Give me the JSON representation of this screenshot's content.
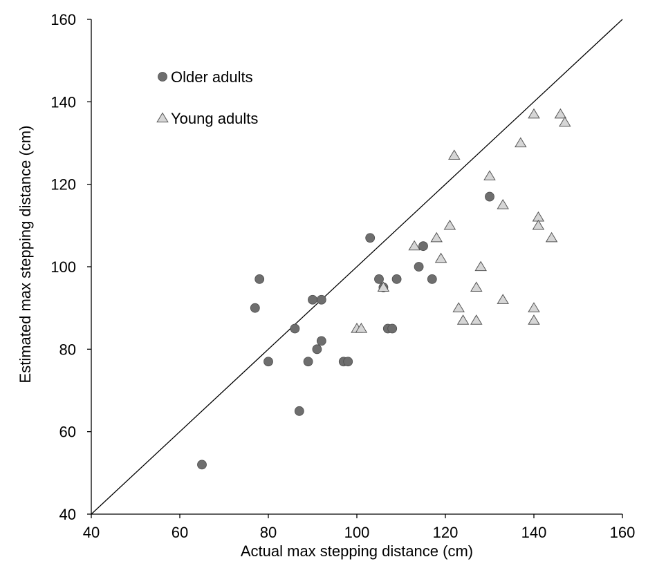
{
  "chart_data": {
    "type": "scatter",
    "title": "",
    "xlabel": "Actual max stepping distance (cm)",
    "ylabel": "Estimated max stepping distance (cm)",
    "xlim": [
      40,
      160
    ],
    "ylim": [
      40,
      160
    ],
    "xticks": [
      40,
      60,
      80,
      100,
      120,
      140,
      160
    ],
    "yticks": [
      40,
      60,
      80,
      100,
      120,
      140,
      160
    ],
    "grid": false,
    "legend_position": "top-left",
    "reference_line": {
      "from": [
        40,
        40
      ],
      "to": [
        160,
        160
      ]
    },
    "series": [
      {
        "name": "Older adults",
        "marker": "circle",
        "color": "#6e6e6e",
        "points": [
          [
            65,
            52
          ],
          [
            77,
            90
          ],
          [
            78,
            97
          ],
          [
            80,
            77
          ],
          [
            86,
            85
          ],
          [
            87,
            65
          ],
          [
            89,
            77
          ],
          [
            90,
            92
          ],
          [
            91,
            80
          ],
          [
            92,
            82
          ],
          [
            92,
            92
          ],
          [
            97,
            77
          ],
          [
            98,
            77
          ],
          [
            103,
            107
          ],
          [
            105,
            97
          ],
          [
            106,
            95
          ],
          [
            107,
            85
          ],
          [
            108,
            85
          ],
          [
            109,
            97
          ],
          [
            114,
            100
          ],
          [
            115,
            105
          ],
          [
            117,
            97
          ],
          [
            130,
            117
          ]
        ]
      },
      {
        "name": "Young adults",
        "marker": "triangle",
        "color": "#d6d6d6",
        "points": [
          [
            100,
            85
          ],
          [
            101,
            85
          ],
          [
            106,
            95
          ],
          [
            113,
            105
          ],
          [
            118,
            107
          ],
          [
            119,
            102
          ],
          [
            121,
            110
          ],
          [
            122,
            127
          ],
          [
            123,
            90
          ],
          [
            124,
            87
          ],
          [
            127,
            87
          ],
          [
            127,
            95
          ],
          [
            128,
            100
          ],
          [
            130,
            122
          ],
          [
            133,
            115
          ],
          [
            133,
            92
          ],
          [
            137,
            130
          ],
          [
            140,
            137
          ],
          [
            140,
            90
          ],
          [
            140,
            87
          ],
          [
            141,
            112
          ],
          [
            141,
            110
          ],
          [
            144,
            107
          ],
          [
            146,
            137
          ],
          [
            147,
            135
          ]
        ]
      }
    ]
  }
}
